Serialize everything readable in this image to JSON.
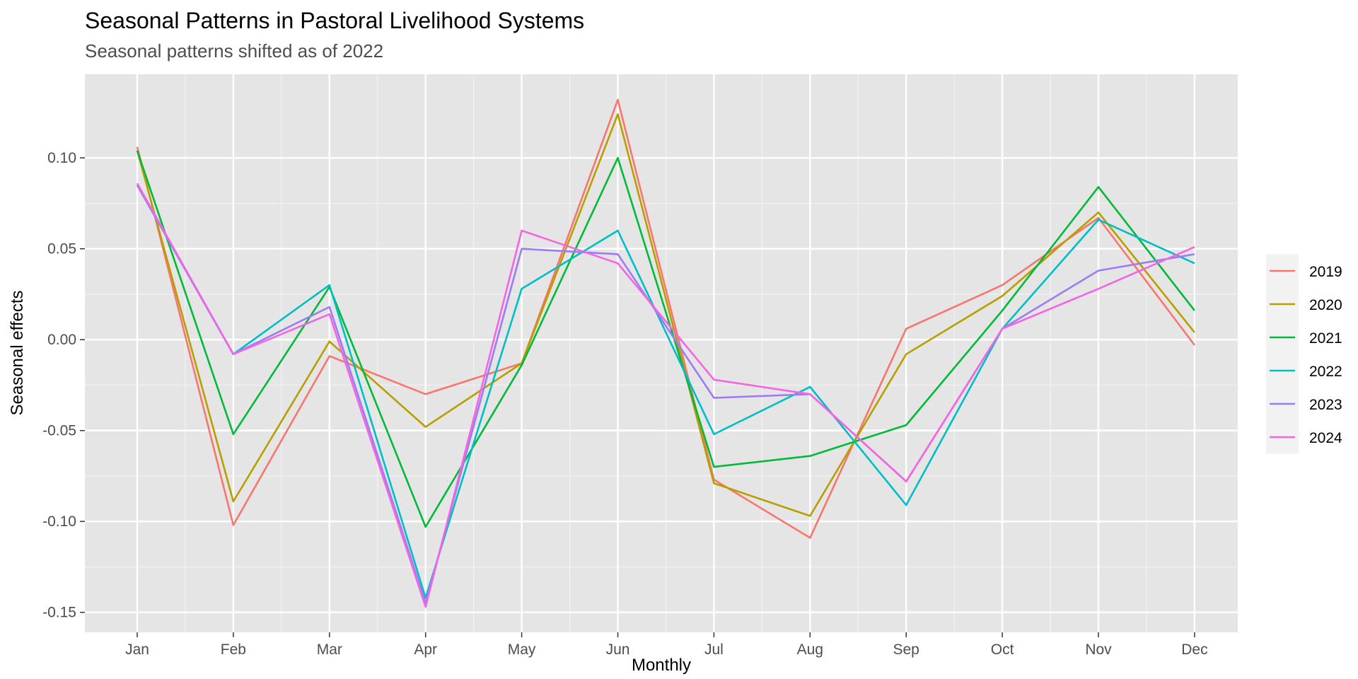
{
  "chart_data": {
    "type": "line",
    "title": "Seasonal Patterns in Pastoral Livelihood Systems",
    "subtitle": "Seasonal patterns shifted as of 2022",
    "xlabel": "Monthly",
    "ylabel": "Seasonal effects",
    "categories": [
      "Jan",
      "Feb",
      "Mar",
      "Apr",
      "May",
      "Jun",
      "Jul",
      "Aug",
      "Sep",
      "Oct",
      "Nov",
      "Dec"
    ],
    "ylim": [
      -0.161,
      0.146
    ],
    "yticks": [
      -0.15,
      -0.1,
      -0.05,
      0.0,
      0.05,
      0.1
    ],
    "ytick_labels": [
      "-0.15",
      "-0.10",
      "-0.05",
      "0.00",
      "0.05",
      "0.10"
    ],
    "grid": true,
    "legend_position": "right",
    "panel_background": "#e5e5e5",
    "series": [
      {
        "name": "2019",
        "color": "#f8766d",
        "values": [
          0.106,
          -0.102,
          -0.009,
          -0.03,
          -0.013,
          0.132,
          -0.077,
          -0.109,
          0.006,
          0.03,
          0.067,
          -0.003
        ]
      },
      {
        "name": "2020",
        "color": "#b79f00",
        "values": [
          0.104,
          -0.089,
          -0.001,
          -0.048,
          -0.013,
          0.124,
          -0.079,
          -0.097,
          -0.008,
          0.024,
          0.07,
          0.004
        ]
      },
      {
        "name": "2021",
        "color": "#00ba38",
        "values": [
          0.104,
          -0.052,
          0.029,
          -0.103,
          -0.014,
          0.1,
          -0.07,
          -0.064,
          -0.047,
          0.016,
          0.084,
          0.016
        ]
      },
      {
        "name": "2022",
        "color": "#00bfc4",
        "values": [
          0.085,
          -0.008,
          0.03,
          -0.142,
          0.028,
          0.06,
          -0.052,
          -0.026,
          -0.091,
          0.006,
          0.066,
          0.042
        ]
      },
      {
        "name": "2023",
        "color": "#9a7cf6",
        "values": [
          0.085,
          -0.008,
          0.018,
          -0.145,
          0.05,
          0.047,
          -0.032,
          -0.03,
          -0.078,
          0.006,
          0.038,
          0.047
        ]
      },
      {
        "name": "2024",
        "color": "#f564e3",
        "values": [
          0.086,
          -0.008,
          0.014,
          -0.147,
          0.06,
          0.042,
          -0.022,
          -0.03,
          -0.078,
          0.006,
          0.028,
          0.051
        ]
      }
    ]
  }
}
